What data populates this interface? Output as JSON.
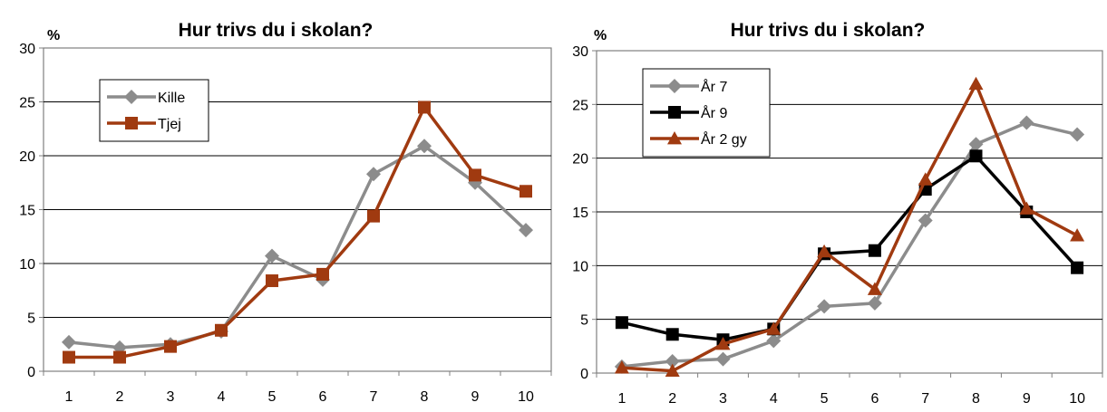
{
  "chart_data": [
    {
      "type": "line",
      "title": "Hur trivs du i skolan?",
      "ylabel": "%",
      "xlabel": "",
      "categories": [
        "1",
        "2",
        "3",
        "4",
        "5",
        "6",
        "7",
        "8",
        "9",
        "10"
      ],
      "yticks": [
        "0",
        "5",
        "10",
        "15",
        "20",
        "25",
        "30"
      ],
      "ylim": [
        0,
        30
      ],
      "grid": true,
      "legend_position": "top-left",
      "series": [
        {
          "name": "Kille",
          "color": "#8c8c8c",
          "marker": "diamond",
          "values": [
            2.7,
            2.2,
            2.5,
            3.7,
            10.7,
            8.5,
            18.3,
            20.9,
            17.5,
            13.1
          ]
        },
        {
          "name": "Tjej",
          "color": "#a03a10",
          "marker": "square",
          "values": [
            1.3,
            1.3,
            2.3,
            3.8,
            8.4,
            9.0,
            14.4,
            24.5,
            18.2,
            16.7
          ]
        }
      ]
    },
    {
      "type": "line",
      "title": "Hur trivs du i skolan?",
      "ylabel": "%",
      "xlabel": "",
      "categories": [
        "1",
        "2",
        "3",
        "4",
        "5",
        "6",
        "7",
        "8",
        "9",
        "10"
      ],
      "yticks": [
        "0",
        "5",
        "10",
        "15",
        "20",
        "25",
        "30"
      ],
      "ylim": [
        0,
        30
      ],
      "grid": true,
      "legend_position": "top-left",
      "series": [
        {
          "name": "År 7",
          "color": "#8c8c8c",
          "marker": "diamond",
          "values": [
            0.6,
            1.1,
            1.3,
            3.0,
            6.2,
            6.5,
            14.2,
            21.3,
            23.3,
            22.2
          ]
        },
        {
          "name": "År 9",
          "color": "#000000",
          "marker": "square",
          "values": [
            4.7,
            3.6,
            3.1,
            4.1,
            11.1,
            11.4,
            17.1,
            20.2,
            15.0,
            9.8
          ]
        },
        {
          "name": "År 2 gy",
          "color": "#a03a10",
          "marker": "triangle",
          "values": [
            0.5,
            0.2,
            2.7,
            4.1,
            11.3,
            7.8,
            18.0,
            26.9,
            15.3,
            12.8
          ]
        }
      ]
    }
  ]
}
